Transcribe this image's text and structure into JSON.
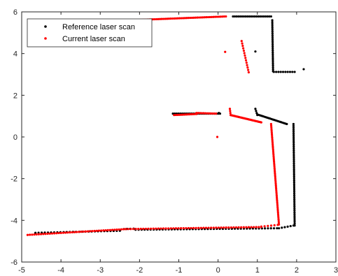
{
  "chart_data": {
    "type": "scatter",
    "title": "",
    "xlabel": "",
    "ylabel": "",
    "xlim": [
      -5,
      3
    ],
    "ylim": [
      -6,
      6
    ],
    "xticks": [
      -5,
      -4,
      -3,
      -2,
      -1,
      0,
      1,
      2,
      3
    ],
    "yticks": [
      -6,
      -4,
      -2,
      0,
      2,
      4,
      6
    ],
    "grid": false,
    "legend_position": "top-left",
    "series": [
      {
        "name": "Reference laser scan",
        "color": "#000000",
        "segments": [
          {
            "from": [
              0.38,
              5.78
            ],
            "to": [
              1.35,
              5.78
            ],
            "count": 22
          },
          {
            "from": [
              1.38,
              5.6
            ],
            "to": [
              1.4,
              3.15
            ],
            "count": 28
          },
          {
            "from": [
              1.42,
              3.12
            ],
            "to": [
              1.95,
              3.12
            ],
            "count": 10
          },
          {
            "from": [
              -1.15,
              1.12
            ],
            "to": [
              0.05,
              1.12
            ],
            "count": 26
          },
          {
            "from": [
              0.95,
              1.35
            ],
            "to": [
              1.0,
              1.05
            ],
            "count": 4
          },
          {
            "from": [
              1.0,
              1.08
            ],
            "to": [
              1.75,
              0.62
            ],
            "count": 22
          },
          {
            "from": [
              1.92,
              0.62
            ],
            "to": [
              1.95,
              -4.25
            ],
            "count": 55
          },
          {
            "from": [
              1.92,
              -4.25
            ],
            "to": [
              1.55,
              -4.38
            ],
            "count": 6
          },
          {
            "from": [
              1.5,
              -4.38
            ],
            "to": [
              -2.1,
              -4.45
            ],
            "count": 48
          },
          {
            "from": [
              -2.15,
              -4.4
            ],
            "to": [
              -2.4,
              -4.42
            ],
            "count": 4
          },
          {
            "from": [
              -2.5,
              -4.5
            ],
            "to": [
              -4.65,
              -4.6
            ],
            "count": 28
          }
        ],
        "points": [
          [
            2.18,
            3.25
          ],
          [
            0.95,
            4.1
          ],
          [
            0.02,
            1.15
          ]
        ]
      },
      {
        "name": "Current laser scan",
        "color": "#ff0000",
        "segments": [
          {
            "from": [
              -2.25,
              5.6
            ],
            "to": [
              0.2,
              5.78
            ],
            "count": 55
          },
          {
            "from": [
              0.6,
              4.6
            ],
            "to": [
              0.78,
              3.1
            ],
            "count": 14
          },
          {
            "from": [
              -1.12,
              1.05
            ],
            "to": [
              -0.55,
              1.1
            ],
            "count": 14
          },
          {
            "from": [
              -0.55,
              1.15
            ],
            "to": [
              -0.05,
              1.12
            ],
            "count": 12
          },
          {
            "from": [
              0.3,
              1.35
            ],
            "to": [
              0.32,
              1.05
            ],
            "count": 4
          },
          {
            "from": [
              0.32,
              1.05
            ],
            "to": [
              1.1,
              0.7
            ],
            "count": 32
          },
          {
            "from": [
              1.35,
              0.62
            ],
            "to": [
              1.55,
              -4.2
            ],
            "count": 60
          },
          {
            "from": [
              1.52,
              -4.22
            ],
            "to": [
              1.1,
              -4.3
            ],
            "count": 6
          },
          {
            "from": [
              1.1,
              -4.32
            ],
            "to": [
              -2.35,
              -4.42
            ],
            "count": 55
          },
          {
            "from": [
              -2.35,
              -4.42
            ],
            "to": [
              -4.85,
              -4.7
            ],
            "count": 45
          }
        ],
        "points": [
          [
            0.18,
            4.08
          ],
          [
            -0.02,
            0.0
          ]
        ]
      }
    ]
  }
}
